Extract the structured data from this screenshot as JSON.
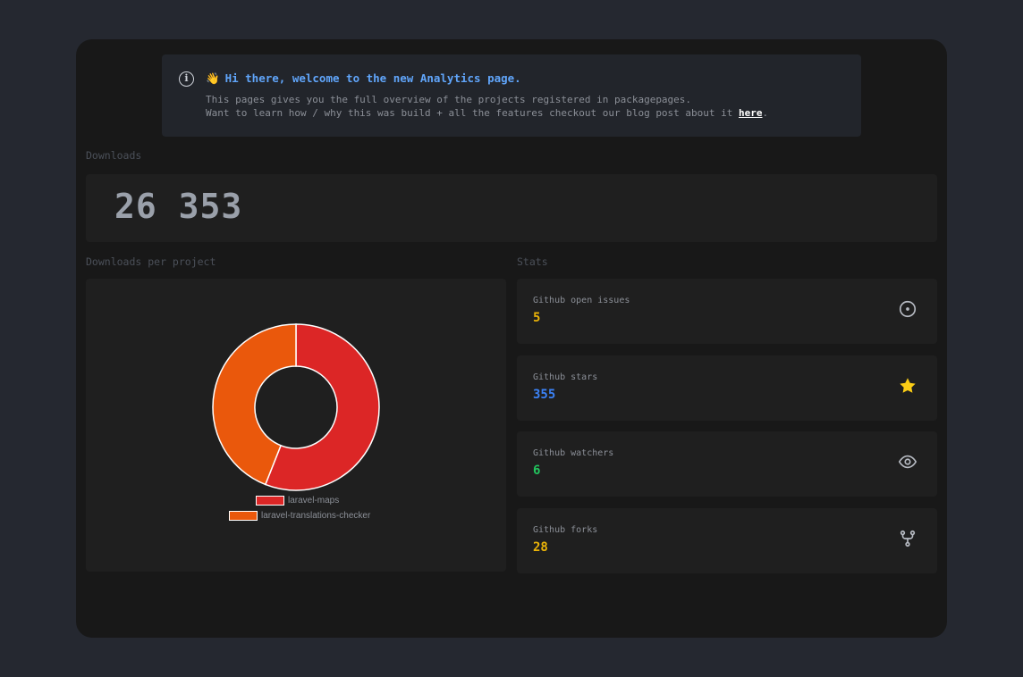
{
  "banner": {
    "wave_icon": "👋",
    "title": "Hi there, welcome to the new Analytics page.",
    "line1": "This pages gives you the full overview of the projects registered in packagepages.",
    "line2_prefix": "Want to learn how / why this was build + all the features checkout our blog post about it ",
    "link": "here",
    "line2_suffix": "."
  },
  "downloads": {
    "label": "Downloads",
    "total": "26 353"
  },
  "per_project": {
    "label": "Downloads per project"
  },
  "chart_data": {
    "type": "pie",
    "labels": [
      "laravel-maps",
      "laravel-translations-checker"
    ],
    "values": [
      56,
      44
    ],
    "colors": [
      "#dc2626",
      "#ea580c"
    ]
  },
  "stats": {
    "label": "Stats",
    "items": [
      {
        "label": "Github open issues",
        "value": "5",
        "color": "#eab308",
        "icon": "circle-dot-icon"
      },
      {
        "label": "Github stars",
        "value": "355",
        "color": "#3b82f6",
        "icon": "star-icon"
      },
      {
        "label": "Github watchers",
        "value": "6",
        "color": "#22c55e",
        "icon": "eye-icon"
      },
      {
        "label": "Github forks",
        "value": "28",
        "color": "#eab308",
        "icon": "fork-icon"
      }
    ]
  }
}
